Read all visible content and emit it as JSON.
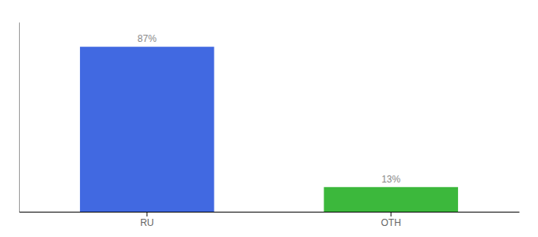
{
  "chart_data": {
    "type": "bar",
    "categories": [
      "RU",
      "OTH"
    ],
    "values": [
      87,
      13
    ],
    "colors": [
      "#4169e1",
      "#3cb83c"
    ],
    "value_labels": [
      "87%",
      "13%"
    ],
    "data_labels": true,
    "ylim": [
      0,
      100
    ],
    "tick_labels": "x"
  }
}
